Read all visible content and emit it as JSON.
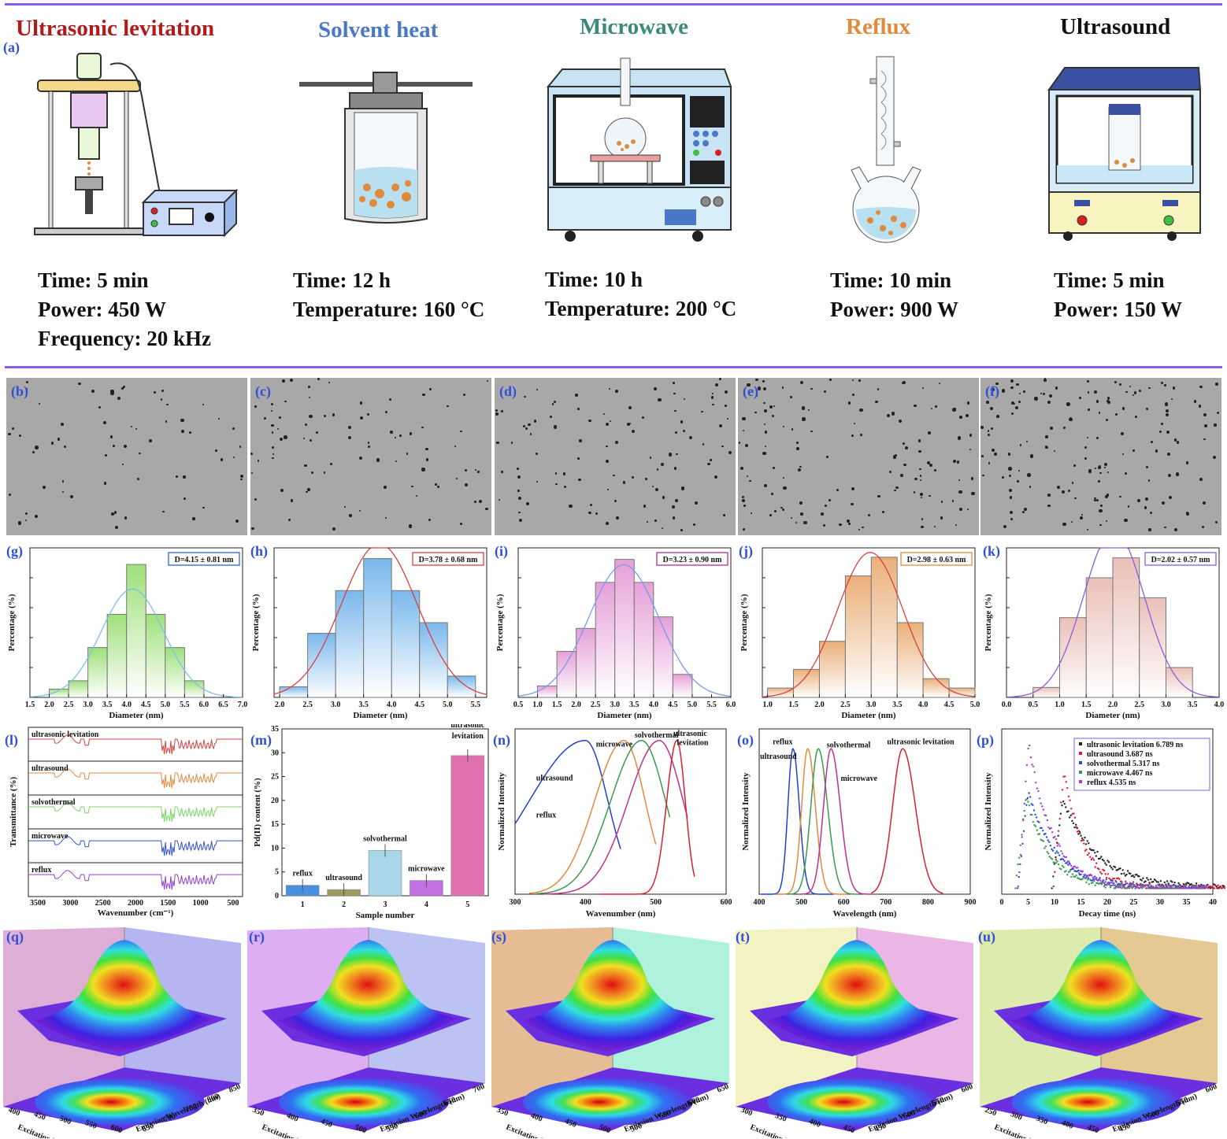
{
  "top": {
    "panel_label": "(a)",
    "methods": [
      {
        "title": "Ultrasonic levitation",
        "color": "#b01c1c",
        "params": [
          "Time: 5 min",
          "Power: 450 W",
          "Frequency: 20 kHz"
        ]
      },
      {
        "title": "Solvent heat",
        "color": "#4a78c8",
        "params": [
          "Time: 12 h",
          "Temperature: 160 °C"
        ]
      },
      {
        "title": "Microwave",
        "color": "#3a8a7a",
        "params": [
          "Time: 10 h",
          "Temperature: 200 °C"
        ]
      },
      {
        "title": "Reflux",
        "color": "#e08a3c",
        "params": [
          "Time: 10 min",
          "Power: 900 W"
        ]
      },
      {
        "title": "Ultrasound",
        "color": "#111111",
        "params": [
          "Time: 5 min",
          "Power: 150 W"
        ]
      }
    ]
  },
  "tem_labels": [
    "(b)",
    "(c)",
    "(d)",
    "(e)",
    "(f)"
  ],
  "hist_labels": [
    "(g)",
    "(h)",
    "(i)",
    "(j)",
    "(k)"
  ],
  "row3_labels": [
    "(l)",
    "(m)",
    "(n)",
    "(o)",
    "(p)"
  ],
  "map_labels": [
    "(q)",
    "(r)",
    "(s)",
    "(t)",
    "(u)"
  ],
  "chart_data": [
    {
      "type": "bar",
      "panel": "(g)",
      "title": "D=4.15 ± 0.81 nm",
      "xlabel": "Diameter (nm)",
      "ylabel": "Percentage (%)",
      "xticks": [
        "1.5",
        "2.0",
        "2.5",
        "3.0",
        "3.5",
        "4.0",
        "4.5",
        "5.0",
        "5.5",
        "6.0",
        "6.5",
        "7.0"
      ],
      "xlim": [
        1.5,
        7.0
      ],
      "bin_start": 2.0,
      "bin_width": 0.5,
      "values": [
        1,
        2,
        6,
        10,
        16,
        10,
        6,
        2
      ],
      "ymax": 18,
      "fit_mean": 4.15,
      "fit_sd": 0.81,
      "color": "#9ee07a",
      "fit_color": "#7cc0e8",
      "box_color": "#3060d0"
    },
    {
      "type": "bar",
      "panel": "(h)",
      "title": "D=3.78 ± 0.68 nm",
      "xlabel": "Diameter (nm)",
      "ylabel": "Percentage (%)",
      "xticks": [
        "2.0",
        "2.5",
        "3.0",
        "3.5",
        "4.0",
        "4.5",
        "5.0",
        "5.5"
      ],
      "xlim": [
        1.9,
        5.7
      ],
      "bin_start": 2.0,
      "bin_width": 0.5,
      "values": [
        1,
        6,
        10,
        13,
        10,
        7,
        2
      ],
      "ymax": 14,
      "fit_mean": 3.78,
      "fit_sd": 0.68,
      "color": "#7ab8ec",
      "fit_color": "#d84040",
      "box_color": "#d84040"
    },
    {
      "type": "bar",
      "panel": "(i)",
      "title": "D=3.23 ± 0.90 nm",
      "xlabel": "Diameter (nm)",
      "ylabel": "Percentage (%)",
      "xticks": [
        "0.5",
        "1.0",
        "1.5",
        "2.0",
        "2.5",
        "3.0",
        "3.5",
        "4.0",
        "4.5",
        "5.0",
        "5.5",
        "6.0"
      ],
      "xlim": [
        0.5,
        6.0
      ],
      "bin_start": 1.0,
      "bin_width": 0.5,
      "values": [
        1,
        4,
        6,
        10,
        12,
        10,
        7,
        2
      ],
      "ymax": 13,
      "fit_mean": 3.23,
      "fit_sd": 0.9,
      "color": "#e6a0d8",
      "fit_color": "#7a9ae8",
      "box_color": "#b03090"
    },
    {
      "type": "bar",
      "panel": "(j)",
      "title": "D=2.98 ± 0.63 nm",
      "xlabel": "Diameter (nm)",
      "ylabel": "Percentage (%)",
      "xticks": [
        "1.0",
        "1.5",
        "2.0",
        "2.5",
        "3.0",
        "3.5",
        "4.0",
        "4.5",
        "5.0"
      ],
      "xlim": [
        0.9,
        5.0
      ],
      "bin_start": 1.0,
      "bin_width": 0.5,
      "values": [
        1,
        3,
        6,
        13,
        15,
        8,
        2,
        1
      ],
      "ymax": 16,
      "fit_mean": 2.98,
      "fit_sd": 0.63,
      "color": "#eab07a",
      "fit_color": "#d84040",
      "box_color": "#e08a3c"
    },
    {
      "type": "bar",
      "panel": "(k)",
      "title": "D=2.02 ± 0.57 nm",
      "xlabel": "Diameter (nm)",
      "ylabel": "Percentage (%)",
      "xticks": [
        "0.0",
        "0.5",
        "1.0",
        "1.5",
        "2.0",
        "2.5",
        "3.0",
        "3.5",
        "4.0"
      ],
      "xlim": [
        0.0,
        4.0
      ],
      "bin_start": 0.5,
      "bin_width": 0.5,
      "values": [
        1,
        8,
        12,
        14,
        10,
        3
      ],
      "ymax": 15,
      "fit_mean": 2.02,
      "fit_sd": 0.57,
      "color": "#eac0b8",
      "fit_color": "#8a5ce0",
      "box_color": "#8a5ce0"
    },
    {
      "type": "line",
      "panel": "(l)",
      "xlabel": "Wavenumber (cm⁻¹)",
      "ylabel": "Transmittance (%)",
      "xticks": [
        "3500",
        "3000",
        "2500",
        "2000",
        "1500",
        "1000",
        "500"
      ],
      "series": [
        {
          "name": "ultrasonic levitation",
          "color": "#d84040"
        },
        {
          "name": "ultrasound",
          "color": "#e08a3c"
        },
        {
          "name": "solvothermal",
          "color": "#7ad860"
        },
        {
          "name": "microwave",
          "color": "#3050d0"
        },
        {
          "name": "reflux",
          "color": "#9040d0"
        }
      ]
    },
    {
      "type": "bar",
      "panel": "(m)",
      "xlabel": "Sample number",
      "ylabel": "Pd(II) content (%)",
      "categories": [
        "1",
        "2",
        "3",
        "4",
        "5"
      ],
      "yticks": [
        "0",
        "5",
        "10",
        "15",
        "20",
        "25",
        "30",
        "35"
      ],
      "ylim": [
        0,
        35
      ],
      "values": [
        2.2,
        1.3,
        9.5,
        3.2,
        29.4
      ],
      "labels": [
        "reflux",
        "ultrasound",
        "solvothermal",
        "microwave",
        "ultrasonic levitation"
      ],
      "colors": [
        "#4a90e0",
        "#a09a60",
        "#a8d8e8",
        "#c070e0",
        "#e070b0"
      ],
      "label_colors": [
        "#4a90e0",
        "#8a8a40",
        "#4a78c8",
        "#b040d0",
        "#d03080"
      ]
    },
    {
      "type": "line",
      "panel": "(n)",
      "xlabel": "Wavenumber (nm)",
      "ylabel": "Normalized Intensity",
      "xticks": [
        "300",
        "400",
        "500",
        "600"
      ],
      "xlim": [
        300,
        600
      ],
      "series": [
        {
          "name": "ultrasound",
          "color": "#2040d0"
        },
        {
          "name": "reflux",
          "color": "#e08a3c"
        },
        {
          "name": "microwave",
          "color": "#3a9a50"
        },
        {
          "name": "solvothermal",
          "color": "#c03090"
        },
        {
          "name": "ultrasonic levitation",
          "color": "#d82030"
        }
      ]
    },
    {
      "type": "line",
      "panel": "(o)",
      "xlabel": "Wavelength (nm)",
      "ylabel": "Normalized Intensity",
      "xticks": [
        "400",
        "500",
        "600",
        "700",
        "800",
        "900"
      ],
      "xlim": [
        400,
        900
      ],
      "series": [
        {
          "name": "ultrasound",
          "color": "#2040d0",
          "peak": 480
        },
        {
          "name": "reflux",
          "color": "#e08a3c",
          "peak": 515
        },
        {
          "name": "microwave",
          "color": "#3a9a50",
          "peak": 540
        },
        {
          "name": "solvothermal",
          "color": "#c03090",
          "peak": 570
        },
        {
          "name": "ultrasonic levitation",
          "color": "#d82030",
          "peak": 740
        }
      ]
    },
    {
      "type": "scatter",
      "panel": "(p)",
      "xlabel": "Decay time (ns)",
      "ylabel": "Normalized Intensity",
      "xticks": [
        "0",
        "5",
        "10",
        "15",
        "20",
        "25",
        "30",
        "35",
        "40"
      ],
      "xlim": [
        0,
        40
      ],
      "series": [
        {
          "name": "ultrasonic levitation 6.789 ns",
          "color": "#222222",
          "start": 11.5,
          "tau": 6.789,
          "amp": 0.6
        },
        {
          "name": "ultrasound 3.687 ns",
          "color": "#d82030",
          "start": 11.8,
          "tau": 3.687,
          "amp": 0.8
        },
        {
          "name": "solvothermal 5.317 ns",
          "color": "#2050d0",
          "start": 5,
          "tau": 5.317,
          "amp": 0.65
        },
        {
          "name": "microwave 4.467 ns",
          "color": "#3a9a50",
          "start": 4.6,
          "tau": 4.467,
          "amp": 0.62
        },
        {
          "name": "reflux 4.535 ns",
          "color": "#a040d0",
          "start": 5.1,
          "tau": 4.535,
          "amp": 0.98
        }
      ]
    }
  ],
  "maps": [
    {
      "ex_label": "Excitation Wavelength (nm)",
      "em_label": "Emission Wavelength (nm)",
      "ex_ticks": [
        "400",
        "450",
        "500",
        "550",
        "600"
      ],
      "em_ticks": [
        "650",
        "700",
        "750",
        "800",
        "850"
      ],
      "left_wall": "#d8a0d0",
      "right_wall": "#a8a8f0"
    },
    {
      "ex_label": "Excitation Wavelength (nm)",
      "em_label": "Emission Wavelength (nm)",
      "ex_ticks": [
        "350",
        "400",
        "450",
        "500"
      ],
      "em_ticks": [
        "550",
        "600",
        "650",
        "700"
      ],
      "left_wall": "#d8a0f0",
      "right_wall": "#b0b8f0"
    },
    {
      "ex_label": "Excitation Wavelength (nm)",
      "em_label": "Emission Wavelength (nm)",
      "ex_ticks": [
        "350",
        "400",
        "450",
        "500"
      ],
      "em_ticks": [
        "500",
        "550",
        "600",
        "650"
      ],
      "left_wall": "#e0b080",
      "right_wall": "#a0f0d8"
    },
    {
      "ex_label": "Excitation Wavelength (nm)",
      "em_label": "Emission Wavelength (nm)",
      "ex_ticks": [
        "300",
        "350",
        "400",
        "450"
      ],
      "em_ticks": [
        "450",
        "500",
        "550",
        "600"
      ],
      "left_wall": "#f0f0b8",
      "right_wall": "#e8a8e0"
    },
    {
      "ex_label": "Excitation Wavelength (nm)",
      "em_label": "Emission Wavelength (nm)",
      "ex_ticks": [
        "250",
        "300",
        "350",
        "400",
        "450"
      ],
      "em_ticks": [
        "450",
        "500",
        "550",
        "600"
      ],
      "left_wall": "#d8e8a0",
      "right_wall": "#e0c080"
    }
  ]
}
